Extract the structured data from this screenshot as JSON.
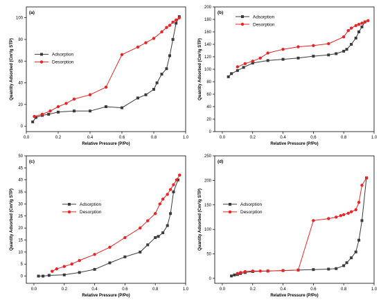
{
  "chart_data": [
    {
      "type": "line",
      "panel_label": "(a)",
      "xlabel": "Relative Pressure (P/Po)",
      "ylabel": "Quantity Adsorbed (Cm³/g STP)",
      "xlim": [
        0,
        1.0
      ],
      "ylim": [
        -5,
        110
      ],
      "xticks": [
        "0.0",
        "0.2",
        "0.4",
        "0.6",
        "0.8",
        "1.0"
      ],
      "yticks": [
        "0",
        "20",
        "40",
        "60",
        "80",
        "100"
      ],
      "legend_position": "middle-left",
      "series": [
        {
          "name": "Adsorption",
          "color": "#3a3a3a",
          "marker": "square",
          "x": [
            0.04,
            0.06,
            0.1,
            0.14,
            0.2,
            0.3,
            0.4,
            0.5,
            0.6,
            0.7,
            0.75,
            0.8,
            0.82,
            0.85,
            0.88,
            0.9,
            0.92,
            0.94,
            0.96
          ],
          "y": [
            4,
            8,
            10,
            11,
            13,
            14,
            14,
            18,
            17,
            26,
            29,
            34,
            40,
            48,
            53,
            65,
            80,
            95,
            101
          ]
        },
        {
          "name": "Desorption",
          "color": "#ee2222",
          "marker": "circle",
          "x": [
            0.05,
            0.1,
            0.15,
            0.2,
            0.25,
            0.3,
            0.4,
            0.5,
            0.6,
            0.7,
            0.75,
            0.8,
            0.85,
            0.88,
            0.9,
            0.92,
            0.94,
            0.96
          ],
          "y": [
            9,
            11,
            14,
            18,
            21,
            25,
            29,
            36,
            66,
            73,
            77,
            81,
            87,
            91,
            93,
            96,
            98,
            100
          ]
        }
      ]
    },
    {
      "type": "line",
      "panel_label": "(b)",
      "xlabel": "Relative Pressure (P/Po)",
      "ylabel": "Quantity Adsorbed (Cm³/g STP)",
      "xlim": [
        -0.05,
        1.0
      ],
      "ylim": [
        0,
        200
      ],
      "xticks": [
        "0.0",
        "0.2",
        "0.4",
        "0.6",
        "0.8",
        "1.0"
      ],
      "yticks": [
        "0",
        "20",
        "40",
        "60",
        "80",
        "100",
        "120",
        "140",
        "160",
        "180",
        "200"
      ],
      "legend_position": "upper-left",
      "series": [
        {
          "name": "Adsorption",
          "color": "#3a3a3a",
          "marker": "square",
          "x": [
            0.04,
            0.06,
            0.1,
            0.14,
            0.2,
            0.3,
            0.4,
            0.5,
            0.6,
            0.7,
            0.75,
            0.8,
            0.82,
            0.85,
            0.88,
            0.9,
            0.92,
            0.94
          ],
          "y": [
            88,
            93,
            98,
            103,
            110,
            114,
            116,
            118,
            121,
            123,
            125,
            129,
            132,
            140,
            150,
            160,
            168,
            176
          ]
        },
        {
          "name": "Desorption",
          "color": "#ee2222",
          "marker": "circle",
          "x": [
            0.1,
            0.15,
            0.2,
            0.25,
            0.3,
            0.4,
            0.5,
            0.6,
            0.7,
            0.8,
            0.83,
            0.85,
            0.88,
            0.9,
            0.92,
            0.94,
            0.96
          ],
          "y": [
            104,
            109,
            113,
            118,
            126,
            132,
            136,
            138,
            141,
            152,
            162,
            166,
            170,
            172,
            174,
            176,
            178
          ]
        }
      ]
    },
    {
      "type": "line",
      "panel_label": "(c)",
      "xlabel": "Relative Pressure (P/Po)",
      "ylabel": "Quantity Adsorbed (Cm³/g STP)",
      "xlim": [
        -0.05,
        1.0
      ],
      "ylim": [
        -3,
        50
      ],
      "xticks": [
        "0.0",
        "0.2",
        "0.4",
        "0.6",
        "0.8",
        "1.0"
      ],
      "yticks": [
        "0",
        "5",
        "10",
        "15",
        "20",
        "25",
        "30",
        "35",
        "40",
        "45",
        "50"
      ],
      "legend_position": "middle",
      "series": [
        {
          "name": "Adsorption",
          "color": "#3a3a3a",
          "marker": "square",
          "x": [
            0.03,
            0.06,
            0.1,
            0.2,
            0.3,
            0.4,
            0.5,
            0.6,
            0.7,
            0.75,
            0.8,
            0.82,
            0.85,
            0.88,
            0.9,
            0.92,
            0.95
          ],
          "y": [
            0,
            0,
            0.3,
            0.5,
            1.5,
            2.8,
            5.5,
            8,
            10,
            13,
            16,
            16.5,
            18,
            21,
            26,
            35,
            40
          ]
        },
        {
          "name": "Desorption",
          "color": "#ee2222",
          "marker": "circle",
          "x": [
            0.12,
            0.15,
            0.2,
            0.25,
            0.3,
            0.4,
            0.5,
            0.6,
            0.7,
            0.75,
            0.8,
            0.83,
            0.85,
            0.88,
            0.9,
            0.92,
            0.94,
            0.96
          ],
          "y": [
            2,
            3,
            4,
            5,
            6.5,
            9,
            12,
            16,
            20,
            23,
            26,
            30,
            32,
            34,
            36,
            38,
            40,
            42
          ]
        }
      ]
    },
    {
      "type": "line",
      "panel_label": "(d)",
      "xlabel": "Relative Pressure (P/Po)",
      "ylabel": "Quantity Adsorbed (Cm³/g STP)",
      "xlim": [
        -0.05,
        1.0
      ],
      "ylim": [
        -10,
        250
      ],
      "xticks": [
        "0.0",
        "0.2",
        "0.4",
        "0.6",
        "0.8",
        "1.0"
      ],
      "yticks": [
        "0",
        "50",
        "100",
        "150",
        "200",
        "250"
      ],
      "legend_position": "middle-left",
      "series": [
        {
          "name": "Adsorption",
          "color": "#3a3a3a",
          "marker": "square",
          "x": [
            0.06,
            0.08,
            0.1,
            0.12,
            0.15,
            0.2,
            0.3,
            0.4,
            0.5,
            0.6,
            0.7,
            0.75,
            0.8,
            0.82,
            0.85,
            0.88,
            0.9,
            0.92,
            0.95
          ],
          "y": [
            5,
            7,
            8,
            10,
            12,
            14,
            15,
            16,
            17,
            18,
            19,
            20,
            26,
            32,
            42,
            54,
            78,
            118,
            205
          ]
        },
        {
          "name": "Desorption",
          "color": "#ee2222",
          "marker": "circle",
          "x": [
            0.1,
            0.12,
            0.15,
            0.2,
            0.25,
            0.3,
            0.4,
            0.5,
            0.6,
            0.7,
            0.75,
            0.78,
            0.8,
            0.83,
            0.85,
            0.88,
            0.9,
            0.92,
            0.95
          ],
          "y": [
            10,
            12,
            14,
            15,
            15,
            15,
            16,
            17,
            118,
            122,
            125,
            128,
            130,
            133,
            136,
            140,
            155,
            190,
            205
          ]
        }
      ]
    }
  ]
}
